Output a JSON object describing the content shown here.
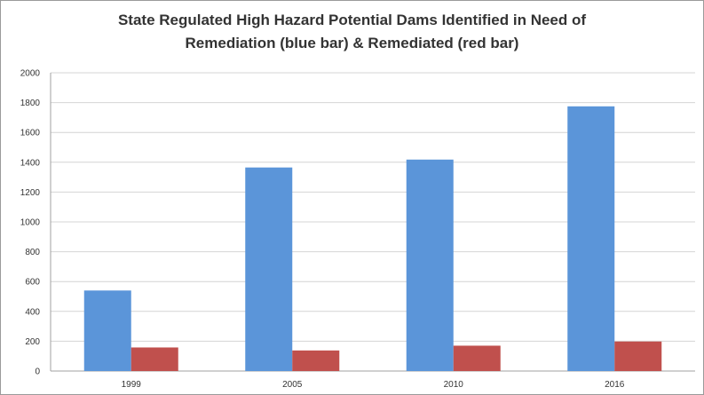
{
  "chart_data": {
    "type": "bar",
    "title_lines": [
      "State Regulated High Hazard Potential Dams Identified in Need of",
      "Remediation (blue bar) & Remediated (red bar)"
    ],
    "categories": [
      "1999",
      "2005",
      "2010",
      "2016"
    ],
    "series": [
      {
        "values": [
          540,
          1365,
          1418,
          1775
        ],
        "color": "#5b95d9"
      },
      {
        "values": [
          158,
          138,
          170,
          198
        ],
        "color": "#c0504d"
      }
    ],
    "ylim": [
      0,
      2000
    ],
    "yticks": [
      0,
      200,
      400,
      600,
      800,
      1000,
      1200,
      1400,
      1600,
      1800,
      2000
    ],
    "grid": true,
    "legend": "none"
  }
}
